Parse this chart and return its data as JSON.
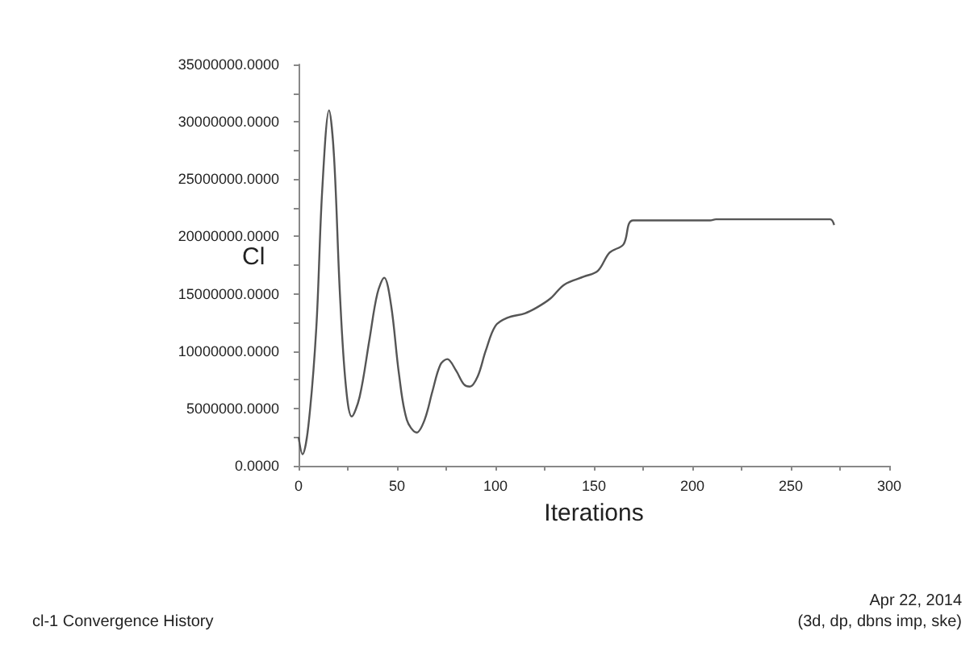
{
  "chart_data": {
    "type": "line",
    "xlabel": "Iterations",
    "ylabel": "Cl",
    "color": "#555555",
    "marker": "none",
    "grid": false,
    "x": [
      0,
      2,
      5,
      9,
      12,
      15.5,
      18,
      21,
      24,
      27,
      31,
      36,
      40,
      43.5,
      47,
      51,
      55,
      60,
      64,
      68,
      72,
      75.5,
      80,
      84,
      87,
      91,
      95,
      100,
      106,
      115,
      121,
      128,
      135,
      145,
      152,
      158,
      165,
      170,
      209,
      212,
      270,
      272
    ],
    "values": [
      2500000,
      1000000,
      3500000,
      12000000,
      24000000,
      31000000,
      27000000,
      15000000,
      7000000,
      4300000,
      6000000,
      11000000,
      15000000,
      16400000,
      14000000,
      8000000,
      4000000,
      2900000,
      4000000,
      6500000,
      8800000,
      9300000,
      8300000,
      7100000,
      6900000,
      7800000,
      10000000,
      12200000,
      12900000,
      13300000,
      13800000,
      14600000,
      15800000,
      16500000,
      17000000,
      18600000,
      19300000,
      21400000,
      21400000,
      21500000,
      21500000,
      21000000
    ],
    "xlim": [
      0,
      300
    ],
    "xticks": [
      0,
      {
        "value": 25,
        "label": null
      },
      50,
      {
        "value": 75,
        "label": null
      },
      100,
      {
        "value": 125,
        "label": null
      },
      150,
      {
        "value": 175,
        "label": null
      },
      200,
      {
        "value": 225,
        "label": null
      },
      250,
      {
        "value": 275,
        "label": null
      },
      300
    ],
    "ylim": [
      0,
      35000000
    ],
    "yticks": [
      {
        "value": 0,
        "label": "0.0000"
      },
      {
        "value": 2500000,
        "label": null
      },
      {
        "value": 5000000,
        "label": "5000000.0000"
      },
      {
        "value": 7500000,
        "label": null
      },
      {
        "value": 10000000,
        "label": "10000000.0000"
      },
      {
        "value": 12500000,
        "label": null
      },
      {
        "value": 15000000,
        "label": "15000000.0000"
      },
      {
        "value": 17500000,
        "label": null
      },
      {
        "value": 20000000,
        "label": "20000000.0000"
      },
      {
        "value": 22500000,
        "label": null
      },
      {
        "value": 25000000,
        "label": "25000000.0000"
      },
      {
        "value": 27500000,
        "label": null
      },
      {
        "value": 30000000,
        "label": "30000000.0000"
      },
      {
        "value": 32500000,
        "label": null
      },
      {
        "value": 35000000,
        "label": "35000000.0000"
      }
    ],
    "annotations": [
      "cl-1 Convergence History",
      "Apr 22, 2014",
      "(3d, dp, dbns imp, ske)"
    ]
  }
}
